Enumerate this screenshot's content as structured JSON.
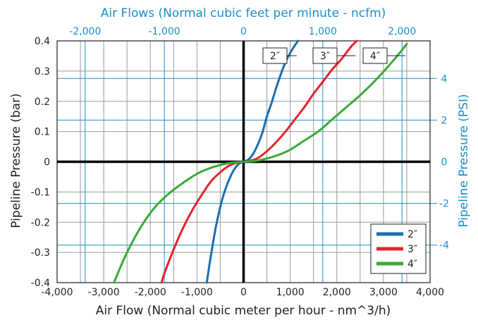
{
  "chart_data": {
    "type": "line",
    "title": "Air Flows (Normal cubic feet per minute - ncfm)",
    "xlabel": "Air Flow (Normal cubic meter per hour - nm^3/h)",
    "ylabel": "Pipeline Pressure (bar)",
    "y2label": "Pipeline Pressure (PSI)",
    "xlim": [
      -4000,
      4000
    ],
    "ylim": [
      -0.4,
      0.4
    ],
    "x_ticks": [
      "-4,000",
      "-3,000",
      "-2,000",
      "-1,000",
      "0",
      "1,000",
      "2,000",
      "3,000",
      "4,000"
    ],
    "x_tick_values": [
      -4000,
      -3000,
      -2000,
      -1000,
      0,
      1000,
      2000,
      3000,
      4000
    ],
    "y_ticks": [
      "-0.4",
      "-0.3",
      "-0.2",
      "-0.1",
      "0",
      "0.1",
      "0.2",
      "0.3",
      "0.4"
    ],
    "y_tick_values": [
      -0.4,
      -0.3,
      -0.2,
      -0.1,
      0,
      0.1,
      0.2,
      0.3,
      0.4
    ],
    "x2_ticks": [
      "-2,000",
      "-1,000",
      "0",
      "1,000",
      "2,000"
    ],
    "x2_tick_values": [
      -2000,
      -1000,
      0,
      1000,
      2000
    ],
    "y2_ticks": [
      "4",
      "2",
      "0",
      "-2",
      "-4"
    ],
    "y2_tick_values": [
      4,
      2,
      0,
      -2,
      -4
    ],
    "grid": true,
    "legend": {
      "position": "bottom-right",
      "entries": [
        "2″",
        "3″",
        "4″"
      ]
    },
    "callouts": [
      "2″",
      "3″",
      "4″"
    ],
    "series": [
      {
        "name": "2″",
        "color": "#1a6fb0",
        "x": [
          -790,
          -760,
          -700,
          -600,
          -500,
          -400,
          -300,
          -200,
          -100,
          0,
          100,
          200,
          300,
          400,
          500,
          600,
          700,
          800,
          900,
          1000,
          1100,
          1170
        ],
        "y": [
          -0.4,
          -0.37,
          -0.31,
          -0.22,
          -0.15,
          -0.095,
          -0.055,
          -0.025,
          -0.007,
          0,
          0.007,
          0.025,
          0.055,
          0.095,
          0.15,
          0.195,
          0.245,
          0.29,
          0.33,
          0.36,
          0.385,
          0.4
        ]
      },
      {
        "name": "3″",
        "color": "#e3242b",
        "x": [
          -1760,
          -1700,
          -1500,
          -1300,
          -1100,
          -900,
          -700,
          -500,
          -300,
          -100,
          0,
          100,
          300,
          500,
          700,
          900,
          1100,
          1300,
          1500,
          1700,
          1900,
          2100,
          2300,
          2430
        ],
        "y": [
          -0.4,
          -0.37,
          -0.29,
          -0.22,
          -0.16,
          -0.11,
          -0.065,
          -0.035,
          -0.012,
          -0.002,
          0,
          0.002,
          0.012,
          0.035,
          0.065,
          0.1,
          0.14,
          0.18,
          0.225,
          0.265,
          0.305,
          0.34,
          0.38,
          0.4
        ]
      },
      {
        "name": "4″",
        "color": "#3aaa35",
        "x": [
          -2780,
          -2700,
          -2500,
          -2200,
          -1900,
          -1600,
          -1300,
          -1000,
          -700,
          -400,
          -200,
          0,
          200,
          400,
          700,
          1000,
          1300,
          1600,
          1900,
          2200,
          2500,
          2800,
          3100,
          3400,
          3500
        ],
        "y": [
          -0.4,
          -0.37,
          -0.3,
          -0.215,
          -0.15,
          -0.105,
          -0.07,
          -0.04,
          -0.02,
          -0.007,
          -0.002,
          0,
          0.002,
          0.007,
          0.02,
          0.04,
          0.07,
          0.1,
          0.14,
          0.18,
          0.22,
          0.265,
          0.315,
          0.37,
          0.39
        ]
      }
    ]
  }
}
